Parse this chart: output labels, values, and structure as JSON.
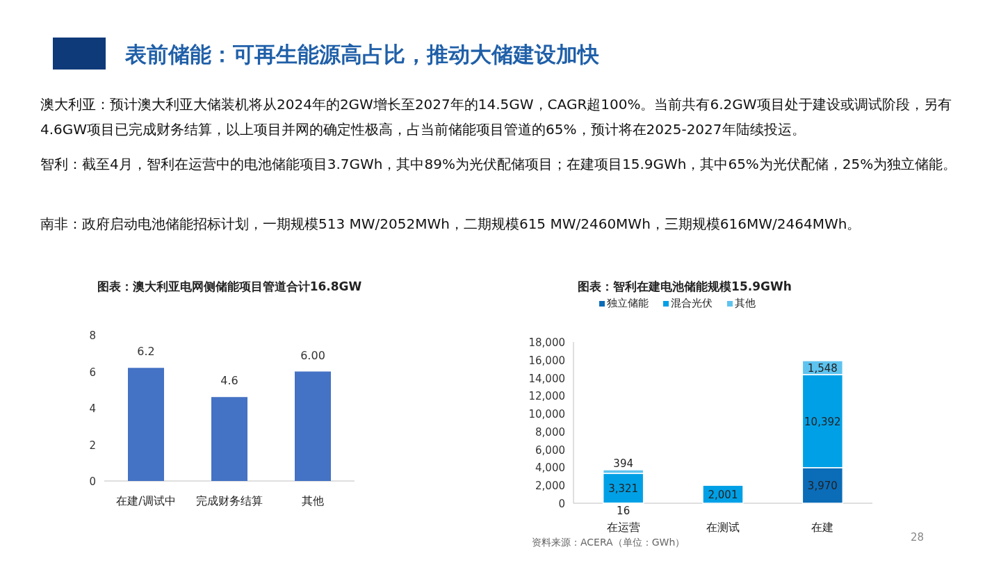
{
  "chart_data": [
    {
      "type": "other",
      "title": "表前储能：可再生能源高占比，推动大储建设加快",
      "annotations": [
        "澳大利亚：预计澳大利亚大储装机将从2024年的2GW增长至2027年的14.5GW，CAGR超100%。当前共有6.2GW项目处于建设或调试阶段，另有4.6GW项目已完成财务结算，以上项目并网的确定性极高，占当前储能项目管道的65%，预计将在2025-2027年陆续投运。",
        "智利：截至4月，智利在运营中的电池储能项目3.7GWh，其中89%为光伏配储项目；在建项目15.9GWh，其中65%为光伏配储，25%为独立储能。",
        "南非：政府启动电池储能招标计划，一期规模513 MW/2052MWh，二期规模615 MW/2460MWh，三期规模616MW/2464MWh。",
        "28"
      ]
    },
    {
      "type": "bar",
      "title": "图表：澳大利亚电网侧储能项目管道合计16.8GW",
      "categories": [
        "在建/调试中",
        "完成财务结算",
        "其他"
      ],
      "values": [
        6.2,
        4.6,
        6
      ],
      "value_labels": [
        "6.2",
        "4.6",
        "6.00"
      ],
      "color": "#4472c4",
      "ylim": [
        0,
        8
      ],
      "yticks": [
        0,
        2,
        4,
        6,
        8
      ],
      "grid": false
    },
    {
      "type": "bar",
      "title": "图表：智利在建电池储能规模15.9GWh",
      "stacked": true,
      "legend": "top",
      "grid": false,
      "categories": [
        "在运营",
        "在测试",
        "在建"
      ],
      "series": [
        {
          "name": "独立储能",
          "color": "#0b6cb8",
          "values": [
            16,
            null,
            3970
          ],
          "value_labels": [
            "16",
            null,
            "3,970"
          ]
        },
        {
          "name": "混合光伏",
          "color": "#00a0e6",
          "values": [
            3321,
            2001,
            10392
          ],
          "value_labels": [
            "3,321",
            "2,001",
            "10,392"
          ]
        },
        {
          "name": "其他",
          "color": "#5ec3ef",
          "values": [
            394,
            null,
            1548
          ],
          "value_labels": [
            "394",
            null,
            "1,548"
          ]
        }
      ],
      "ylim": [
        0,
        18000
      ],
      "yticks": [
        0,
        {
          "value": 2000,
          "label": "2,000"
        },
        {
          "value": 4000,
          "label": "4,000"
        },
        {
          "value": 6000,
          "label": "6,000"
        },
        {
          "value": 8000,
          "label": "8,000"
        },
        {
          "value": 10000,
          "label": "10,000"
        },
        {
          "value": 12000,
          "label": "12,000"
        },
        {
          "value": 14000,
          "label": "14,000"
        },
        {
          "value": 16000,
          "label": "16,000"
        },
        {
          "value": 18000,
          "label": "18,000"
        }
      ],
      "annotations": [
        "资料来源：ACERA（单位：GWh）"
      ]
    }
  ]
}
